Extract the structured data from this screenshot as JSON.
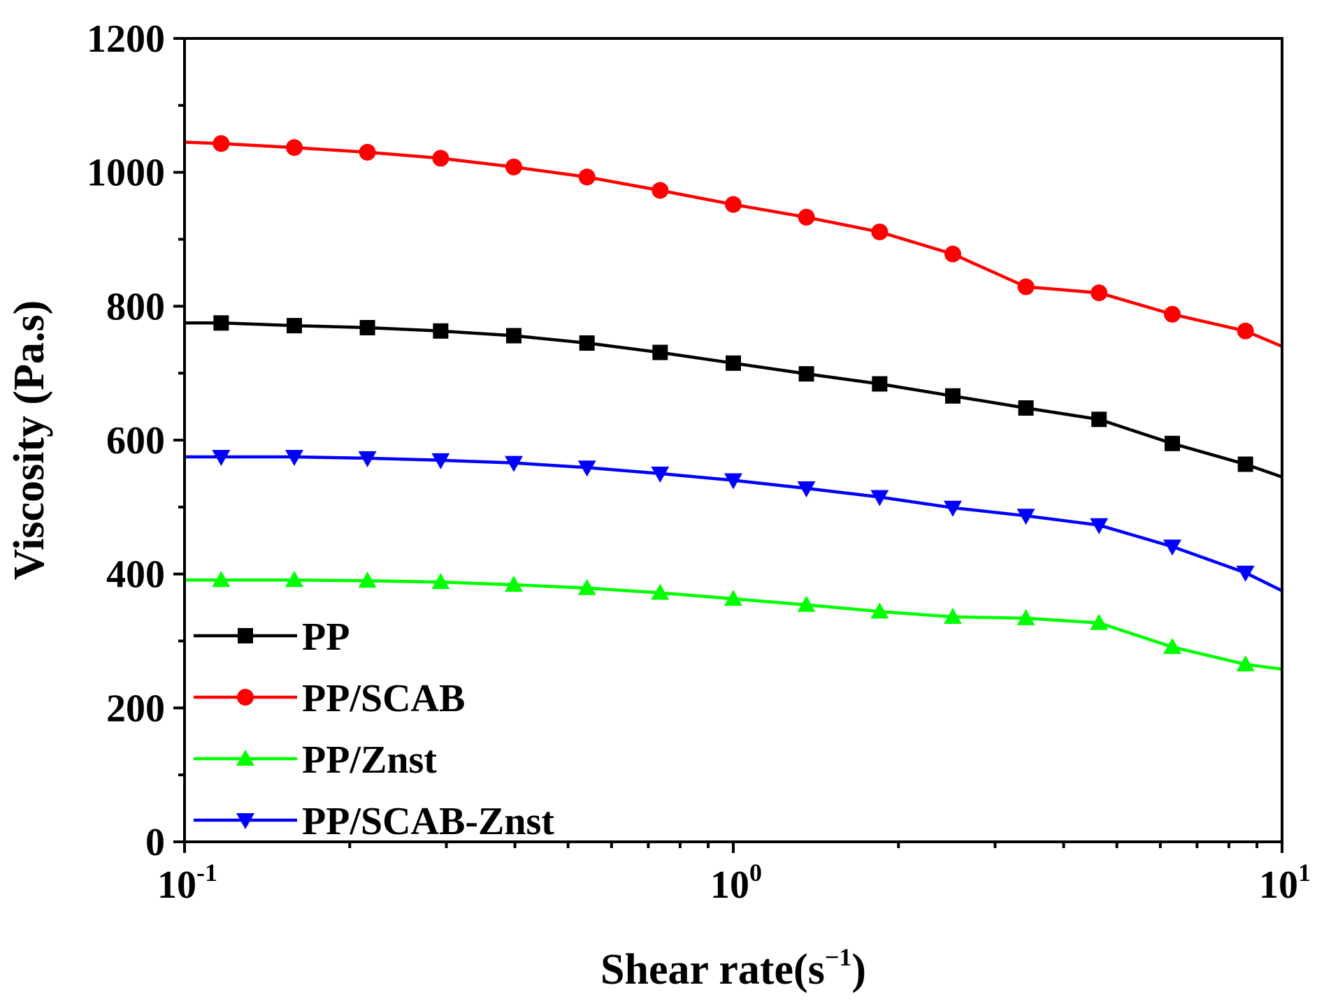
{
  "chart_data": {
    "type": "line",
    "title": "",
    "xlabel": "Shear rate(s",
    "xlabel_sup": "−1",
    "xlabel_close": ")",
    "ylabel": "Viscosity (Pa.s)",
    "xscale": "log",
    "xlim": [
      0.1,
      10
    ],
    "ylim": [
      0,
      1200
    ],
    "x_ticks": [
      {
        "base": "10",
        "exp": "-1",
        "value": 0.1
      },
      {
        "base": "10",
        "exp": "0",
        "value": 1
      },
      {
        "base": "10",
        "exp": "1",
        "value": 10
      }
    ],
    "y_ticks": [
      "0",
      "200",
      "400",
      "600",
      "800",
      "1000",
      "1200"
    ],
    "x": [
      0.1,
      0.1166,
      0.1585,
      0.2154,
      0.2929,
      0.3981,
      0.5412,
      0.7356,
      1.0,
      1.359,
      1.848,
      2.512,
      3.414,
      4.64,
      6.31,
      8.577,
      10
    ],
    "marker_index_start": 1,
    "series": [
      {
        "name": "PP",
        "color": "#000000",
        "marker": "square",
        "values": [
          775,
          775,
          771,
          768,
          763,
          756,
          745,
          731,
          715,
          699,
          684,
          666,
          648,
          631,
          595,
          564,
          545
        ]
      },
      {
        "name": "PP/SCAB",
        "color": "#ff0000",
        "marker": "circle",
        "values": [
          1045,
          1043,
          1037,
          1030,
          1021,
          1008,
          993,
          973,
          952,
          933,
          911,
          878,
          829,
          820,
          788,
          763,
          740
        ]
      },
      {
        "name": "PP/Znst",
        "color": "#00ff00",
        "marker": "triangle-up",
        "values": [
          391,
          391,
          391,
          390,
          388,
          384,
          379,
          372,
          363,
          354,
          344,
          336,
          334,
          327,
          291,
          265,
          258
        ]
      },
      {
        "name": "PP/SCAB-Znst",
        "color": "#0000ff",
        "marker": "triangle-down",
        "values": [
          575,
          575,
          575,
          573,
          570,
          566,
          559,
          550,
          540,
          528,
          515,
          499,
          487,
          473,
          441,
          402,
          375
        ]
      }
    ],
    "legend_position": "bottom-left",
    "grid": false
  }
}
